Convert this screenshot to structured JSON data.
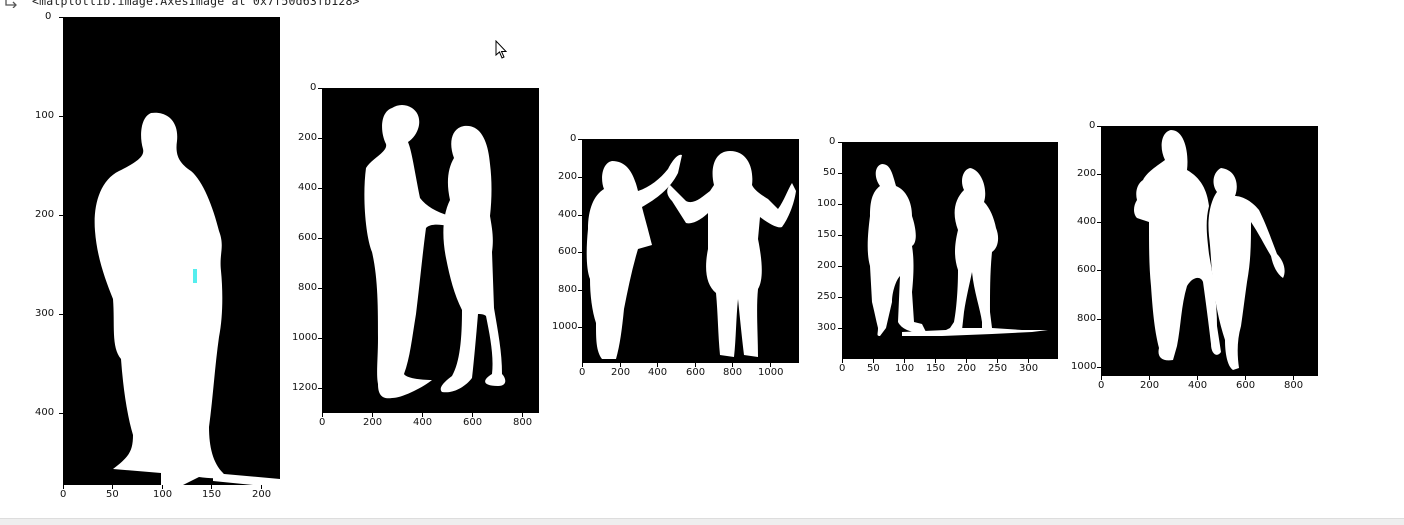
{
  "cell_output": {
    "repr_text": "<matplotlib.image.AxesImage at 0x7f50d63fb128>",
    "icon": "output-arrow-icon"
  },
  "panels": [
    {
      "name": "panel-1",
      "x_ticks": [
        "0",
        "50",
        "100",
        "150",
        "200"
      ],
      "y_ticks": [
        "0",
        "100",
        "200",
        "300",
        "400"
      ]
    },
    {
      "name": "panel-2",
      "x_ticks": [
        "0",
        "200",
        "400",
        "600",
        "800"
      ],
      "y_ticks": [
        "0",
        "200",
        "400",
        "600",
        "800",
        "1000",
        "1200"
      ]
    },
    {
      "name": "panel-3",
      "x_ticks": [
        "0",
        "200",
        "400",
        "600",
        "800",
        "1000"
      ],
      "y_ticks": [
        "0",
        "200",
        "400",
        "600",
        "800",
        "1000"
      ]
    },
    {
      "name": "panel-4",
      "x_ticks": [
        "0",
        "50",
        "100",
        "150",
        "200",
        "250",
        "300"
      ],
      "y_ticks": [
        "0",
        "50",
        "100",
        "150",
        "200",
        "250",
        "300"
      ]
    },
    {
      "name": "panel-5",
      "x_ticks": [
        "0",
        "200",
        "400",
        "600",
        "800"
      ],
      "y_ticks": [
        "0",
        "200",
        "400",
        "600",
        "800",
        "1000"
      ]
    }
  ],
  "cursor": "mouse-pointer-icon"
}
